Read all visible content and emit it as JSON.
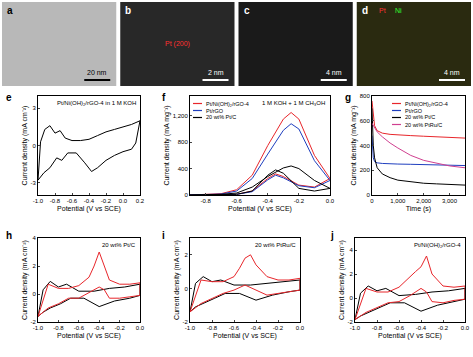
{
  "images": [
    {
      "panel": "a",
      "scale_bar": "20 nm"
    },
    {
      "panel": "b",
      "scale_bar": "2 nm",
      "labels": [
        "Pt (200)"
      ],
      "colors": [
        "#ff3030"
      ]
    },
    {
      "panel": "c",
      "scale_bar": "4 nm"
    },
    {
      "panel": "d",
      "scale_bar": "4 nm",
      "labels": [
        "Pt",
        "Ni"
      ],
      "colors": [
        "#ff3030",
        "#30ff30"
      ]
    }
  ],
  "chart_data": [
    {
      "panel": "e",
      "type": "line",
      "annotations": [
        "Pt/Ni(OH)₂/rGO-4 in 1 M KOH"
      ],
      "xlabel": "Potential (V vs SCE)",
      "ylabel": "Current density (mA cm⁻²)",
      "xlim": [
        -1.0,
        0.2
      ],
      "xticks": [
        {
          "value": -1.0,
          "label": "-1.0"
        },
        -0.8,
        -0.6,
        -0.4,
        -0.2,
        {
          "value": 0,
          "label": "0.0"
        },
        0.2
      ],
      "ylim": [
        -4,
        4
      ],
      "yticks": [
        -3,
        0,
        3
      ],
      "grid": false,
      "series": [
        {
          "color": "#000000",
          "x": [
            -1.0,
            -0.97,
            -0.92,
            -0.86,
            -0.8,
            -0.74,
            -0.68,
            -0.6,
            -0.5,
            -0.4,
            -0.3,
            -0.2,
            -0.1,
            0.0,
            0.1,
            0.2,
            0.15,
            0.1,
            0.0,
            -0.1,
            -0.2,
            -0.3,
            -0.37,
            -0.45,
            -0.55,
            -0.65,
            -0.72,
            -0.78,
            -0.86,
            -0.93,
            -1.0
          ],
          "values": [
            -2.8,
            0.3,
            1.3,
            1.6,
            1.0,
            1.2,
            0.6,
            0.4,
            0.4,
            0.5,
            0.8,
            1.1,
            1.3,
            1.5,
            1.7,
            2.0,
            0.2,
            -0.3,
            -0.5,
            -0.8,
            -1.2,
            -1.8,
            -2.1,
            -1.4,
            -0.6,
            -0.6,
            -1.2,
            -1.0,
            -1.8,
            -2.2,
            -2.8
          ]
        }
      ]
    },
    {
      "panel": "f",
      "type": "line",
      "annotations": [
        "1 M KOH + 1 M CH₃OH"
      ],
      "xlabel": "Potential (V vs SCE)",
      "ylabel": "Current density (mA mg⁻¹)",
      "xlim": [
        -0.9,
        0.0
      ],
      "xticks": [
        -0.8,
        -0.6,
        -0.4,
        -0.2,
        {
          "value": 0,
          "label": "0.0"
        }
      ],
      "ylim": [
        0,
        1500
      ],
      "yticks": [
        0,
        400,
        800,
        {
          "value": 1200,
          "label": "1,200"
        }
      ],
      "grid": false,
      "legend": "upper left",
      "series": [
        {
          "name": "Pt/Ni(OH)₂/rGO-4",
          "color": "#e8262b",
          "x": [
            -0.9,
            -0.7,
            -0.6,
            -0.5,
            -0.4,
            -0.3,
            -0.25,
            -0.2,
            -0.1,
            0.0,
            -0.1,
            -0.2,
            -0.3,
            -0.35,
            -0.4,
            -0.5,
            -0.6,
            -0.9
          ],
          "values": [
            0,
            20,
            80,
            300,
            750,
            1150,
            1250,
            1150,
            600,
            250,
            120,
            150,
            280,
            320,
            250,
            60,
            10,
            0
          ]
        },
        {
          "name": "Pt/rGO",
          "color": "#1f3fbf",
          "x": [
            -0.9,
            -0.7,
            -0.6,
            -0.5,
            -0.4,
            -0.3,
            -0.25,
            -0.2,
            -0.1,
            0.0,
            -0.1,
            -0.2,
            -0.3,
            -0.35,
            -0.4,
            -0.5,
            -0.6,
            -0.9
          ],
          "values": [
            0,
            15,
            60,
            250,
            620,
            980,
            1080,
            1000,
            520,
            220,
            110,
            140,
            260,
            300,
            230,
            50,
            10,
            0
          ]
        },
        {
          "name": "20 wt% Pt/C",
          "color": "#000000",
          "x": [
            -0.9,
            -0.7,
            -0.6,
            -0.5,
            -0.4,
            -0.3,
            -0.25,
            -0.2,
            -0.1,
            0.0,
            -0.1,
            -0.2,
            -0.3,
            -0.35,
            -0.4,
            -0.5,
            -0.6,
            -0.9
          ],
          "values": [
            0,
            10,
            30,
            120,
            280,
            410,
            440,
            400,
            220,
            100,
            60,
            100,
            330,
            380,
            300,
            60,
            10,
            0
          ]
        }
      ]
    },
    {
      "panel": "g",
      "type": "line",
      "xlabel": "Time (s)",
      "ylabel": "Current density (mA mg⁻¹)",
      "xlim": [
        0,
        3600
      ],
      "xticks": [
        0,
        {
          "value": 1000,
          "label": "1,000"
        },
        {
          "value": 2000,
          "label": "2,000"
        },
        {
          "value": 3000,
          "label": "3,000"
        }
      ],
      "ylim": [
        0,
        800
      ],
      "yticks": [
        0,
        200,
        400,
        600,
        800
      ],
      "grid": false,
      "legend": "upper right",
      "x": [
        0,
        50,
        100,
        200,
        400,
        700,
        1000,
        1500,
        2000,
        2500,
        3000,
        3600
      ],
      "series": [
        {
          "name": "Pt/Ni(OH)₂/rGO-4",
          "color": "#e8262b",
          "values": [
            760,
            620,
            560,
            520,
            500,
            490,
            485,
            480,
            475,
            470,
            465,
            460
          ]
        },
        {
          "name": "Pt/rGO",
          "color": "#1f3fbf",
          "values": [
            480,
            300,
            270,
            260,
            255,
            250,
            250,
            248,
            245,
            242,
            240,
            238
          ]
        },
        {
          "name": "20 wt% Pt/C",
          "color": "#000000",
          "values": [
            700,
            400,
            300,
            220,
            170,
            140,
            120,
            105,
            95,
            90,
            85,
            80
          ]
        },
        {
          "name": "20 wt% PtRu/C",
          "color": "#d04090",
          "values": [
            580,
            560,
            540,
            510,
            470,
            420,
            380,
            320,
            280,
            255,
            235,
            220
          ]
        }
      ]
    },
    {
      "panel": "h",
      "type": "line",
      "annotations": [
        "20 wt% Pt/C"
      ],
      "xlabel": "Potential (V vs SCE)",
      "ylabel": "Current density (mA cm⁻²)",
      "xlim": [
        -1.0,
        0.0
      ],
      "xticks": [
        {
          "value": -1.0,
          "label": "-1.0"
        },
        -0.8,
        -0.6,
        -0.4,
        -0.2,
        {
          "value": 0,
          "label": "0.0"
        }
      ],
      "ylim": [
        -2,
        4
      ],
      "yticks": [
        -2,
        0,
        2,
        4
      ],
      "grid": false,
      "series": [
        {
          "color": "#000000",
          "x": [
            -1.0,
            -0.95,
            -0.88,
            -0.8,
            -0.72,
            -0.6,
            -0.45,
            -0.3,
            -0.15,
            0.0,
            0.0,
            -0.1,
            -0.25,
            -0.4,
            -0.55,
            -0.68,
            -0.78,
            -0.88,
            -0.95,
            -1.0
          ],
          "values": [
            -1.6,
            0.3,
            0.9,
            0.5,
            0.7,
            0.2,
            0.2,
            0.4,
            0.5,
            0.7,
            -0.1,
            -0.3,
            -0.5,
            -0.9,
            -0.3,
            -0.3,
            -0.7,
            -1.0,
            -1.3,
            -1.6
          ]
        },
        {
          "color": "#e8262b",
          "x": [
            -1.0,
            -0.9,
            -0.8,
            -0.7,
            -0.6,
            -0.5,
            -0.45,
            -0.4,
            -0.35,
            -0.3,
            -0.2,
            -0.1,
            0.0,
            0.0,
            -0.1,
            -0.2,
            -0.3,
            -0.35,
            -0.4,
            -0.5,
            -0.6,
            -0.7,
            -0.8,
            -0.9,
            -1.0
          ],
          "values": [
            -1.6,
            0.7,
            0.4,
            0.4,
            0.6,
            1.2,
            2.0,
            3.0,
            2.0,
            1.0,
            0.7,
            0.7,
            0.8,
            -0.1,
            -0.2,
            -0.3,
            -0.3,
            0.3,
            0.5,
            0.1,
            -0.3,
            -0.3,
            -0.7,
            -1.0,
            -1.6
          ]
        }
      ]
    },
    {
      "panel": "i",
      "type": "line",
      "annotations": [
        "20 wt% PtRu/C"
      ],
      "xlabel": "Potential (V vs SCE)",
      "ylabel": "Current density (mA cm⁻²)",
      "xlim": [
        -1.0,
        0.0
      ],
      "xticks": [
        {
          "value": -1.0,
          "label": "-1.0"
        },
        -0.8,
        -0.6,
        -0.4,
        -0.2,
        {
          "value": 0,
          "label": "0.0"
        }
      ],
      "ylim": [
        -2,
        3
      ],
      "yticks": [
        -2,
        0,
        2
      ],
      "grid": false,
      "series": [
        {
          "color": "#000000",
          "x": [
            -1.0,
            -0.95,
            -0.88,
            -0.8,
            -0.72,
            -0.6,
            -0.45,
            -0.3,
            -0.15,
            0.0,
            0.0,
            -0.1,
            -0.25,
            -0.4,
            -0.55,
            -0.68,
            -0.78,
            -0.88,
            -0.95,
            -1.0
          ],
          "values": [
            -1.4,
            0.3,
            0.7,
            0.4,
            0.5,
            0.2,
            0.2,
            0.3,
            0.4,
            0.5,
            -0.1,
            -0.2,
            -0.4,
            -0.7,
            -0.3,
            -0.3,
            -0.6,
            -0.9,
            -1.1,
            -1.4
          ]
        },
        {
          "color": "#e8262b",
          "x": [
            -1.0,
            -0.9,
            -0.8,
            -0.7,
            -0.6,
            -0.55,
            -0.5,
            -0.45,
            -0.4,
            -0.3,
            -0.2,
            -0.1,
            0.0,
            0.0,
            -0.1,
            -0.2,
            -0.3,
            -0.4,
            -0.5,
            -0.6,
            -0.7,
            -0.8,
            -0.9,
            -1.0
          ],
          "values": [
            -1.4,
            0.5,
            0.4,
            0.4,
            0.7,
            1.2,
            1.8,
            2.0,
            1.4,
            0.7,
            0.5,
            0.5,
            0.6,
            -0.1,
            -0.2,
            -0.3,
            -0.4,
            -0.1,
            0.2,
            -0.1,
            -0.3,
            -0.6,
            -0.9,
            -1.4
          ]
        }
      ]
    },
    {
      "panel": "j",
      "type": "line",
      "annotations": [
        "Pt/Ni(OH)₂/rGO-4"
      ],
      "xlabel": "Potential (V vs SCE)",
      "ylabel": "Current density (mA cm⁻²)",
      "xlim": [
        -1.0,
        0.0
      ],
      "xticks": [
        {
          "value": -1.0,
          "label": "-1.0"
        },
        -0.8,
        -0.6,
        -0.4,
        -0.2,
        {
          "value": 0,
          "label": "0.0"
        }
      ],
      "ylim": [
        -2,
        5
      ],
      "yticks": [
        -2,
        0,
        2,
        4
      ],
      "grid": false,
      "series": [
        {
          "color": "#000000",
          "x": [
            -1.0,
            -0.95,
            -0.88,
            -0.8,
            -0.72,
            -0.6,
            -0.45,
            -0.3,
            -0.15,
            0.0,
            0.0,
            -0.1,
            -0.25,
            -0.4,
            -0.55,
            -0.68,
            -0.78,
            -0.88,
            -0.95,
            -1.0
          ],
          "values": [
            -1.8,
            0.4,
            1.0,
            0.6,
            0.8,
            0.2,
            0.3,
            0.5,
            0.6,
            0.8,
            -0.1,
            -0.3,
            -0.6,
            -1.1,
            -0.4,
            -0.4,
            -0.8,
            -1.2,
            -1.5,
            -1.8
          ]
        },
        {
          "color": "#e8262b",
          "x": [
            -1.0,
            -0.9,
            -0.8,
            -0.7,
            -0.6,
            -0.5,
            -0.45,
            -0.4,
            -0.35,
            -0.3,
            -0.2,
            -0.1,
            0.0,
            0.0,
            -0.1,
            -0.2,
            -0.3,
            -0.35,
            -0.4,
            -0.5,
            -0.6,
            -0.7,
            -0.8,
            -0.9,
            -1.0
          ],
          "values": [
            -1.8,
            0.8,
            0.5,
            0.5,
            0.9,
            1.8,
            2.2,
            2.6,
            3.5,
            2.0,
            1.0,
            0.9,
            1.0,
            -0.1,
            -0.2,
            -0.4,
            -0.3,
            0.5,
            0.8,
            0.2,
            -0.3,
            -0.4,
            -0.8,
            -1.2,
            -1.8
          ]
        }
      ]
    }
  ]
}
